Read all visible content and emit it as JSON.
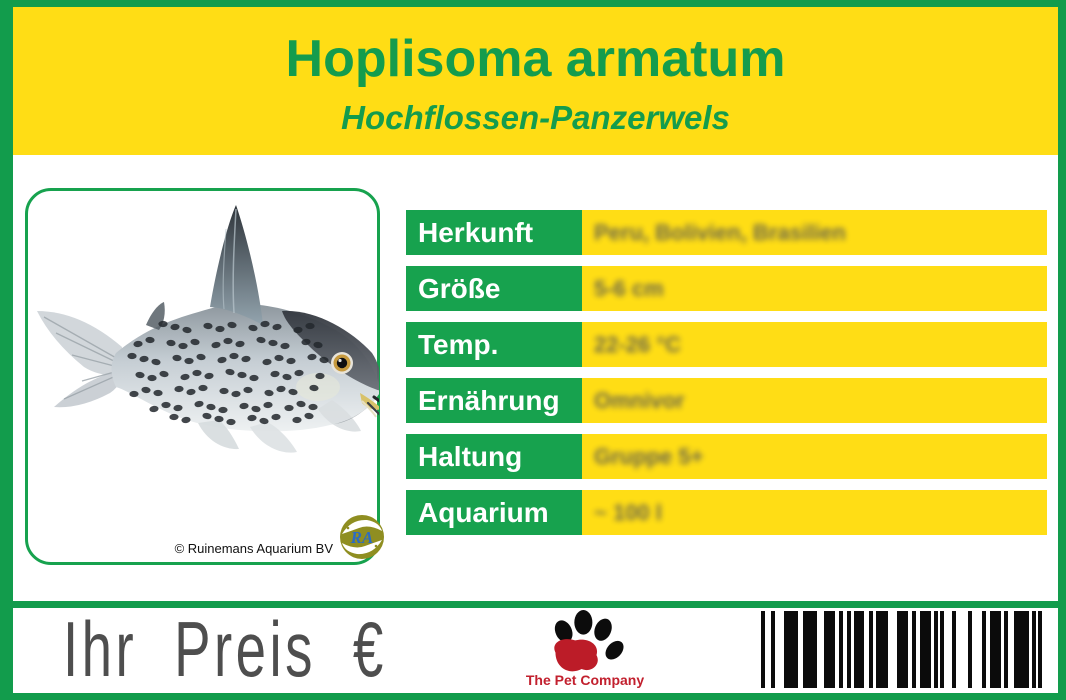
{
  "header": {
    "title": "Hoplisoma armatum",
    "subtitle": "Hochflossen-Panzerwels"
  },
  "photo": {
    "copyright": "© Ruinemans Aquarium BV",
    "logo_monogram": "RA"
  },
  "info": {
    "rows": [
      {
        "label": "Herkunft",
        "value": "Peru, Bolivien, Brasilien"
      },
      {
        "label": "Größe",
        "value": "5-6 cm"
      },
      {
        "label": "Temp.",
        "value": "22-26 °C"
      },
      {
        "label": "Ernährung",
        "value": "Omnivor"
      },
      {
        "label": "Haltung",
        "value": "Gruppe 5+"
      },
      {
        "label": "Aquarium",
        "value": "~ 100 l"
      }
    ]
  },
  "footer": {
    "price_label": "Ihr Preis €",
    "brand_name": "The Pet Company"
  },
  "colors": {
    "green": "#129C4C",
    "cell_green": "#17A24E",
    "yellow": "#FFDD15",
    "title_green": "#149C4D",
    "price_gray": "#4E4E4E",
    "brand_red": "#C2202E"
  },
  "barcode": {
    "bars": [
      [
        4,
        6
      ],
      [
        4,
        9
      ],
      [
        14,
        5
      ],
      [
        14,
        7
      ],
      [
        11,
        4
      ],
      [
        4,
        4
      ],
      [
        4,
        3
      ],
      [
        10,
        5
      ],
      [
        4,
        3
      ],
      [
        12,
        9
      ],
      [
        11,
        4
      ],
      [
        4,
        4
      ],
      [
        11,
        3
      ],
      [
        4,
        2
      ],
      [
        4,
        8
      ],
      [
        4,
        12
      ],
      [
        4,
        10
      ],
      [
        4,
        4
      ],
      [
        11,
        3
      ],
      [
        4,
        6
      ],
      [
        15,
        3
      ],
      [
        4,
        2
      ],
      [
        4,
        0
      ]
    ]
  }
}
